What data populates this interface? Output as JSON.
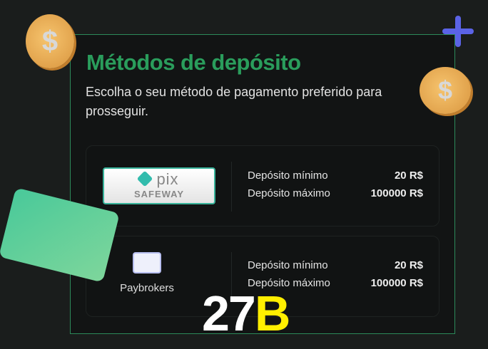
{
  "header": {
    "title": "Métodos de depósito",
    "subtitle": "Escolha o seu método de pagamento preferido para prosseguir."
  },
  "methods": [
    {
      "name": "pix",
      "logo_text": "pix",
      "logo_subtext": "SAFEWAY",
      "min_label": "Depósito mínimo",
      "min_value": "20 R$",
      "max_label": "Depósito máximo",
      "max_value": "100000 R$"
    },
    {
      "name": "Paybrokers",
      "min_label": "Depósito mínimo",
      "min_value": "20 R$",
      "max_label": "Depósito máximo",
      "max_value": "100000 R$"
    }
  ],
  "decor": {
    "coin_symbol": "$"
  },
  "watermark": {
    "part1": "27",
    "part2": "B"
  },
  "colors": {
    "accent": "#2a9d5c",
    "watermark_yellow": "#ffef00"
  }
}
